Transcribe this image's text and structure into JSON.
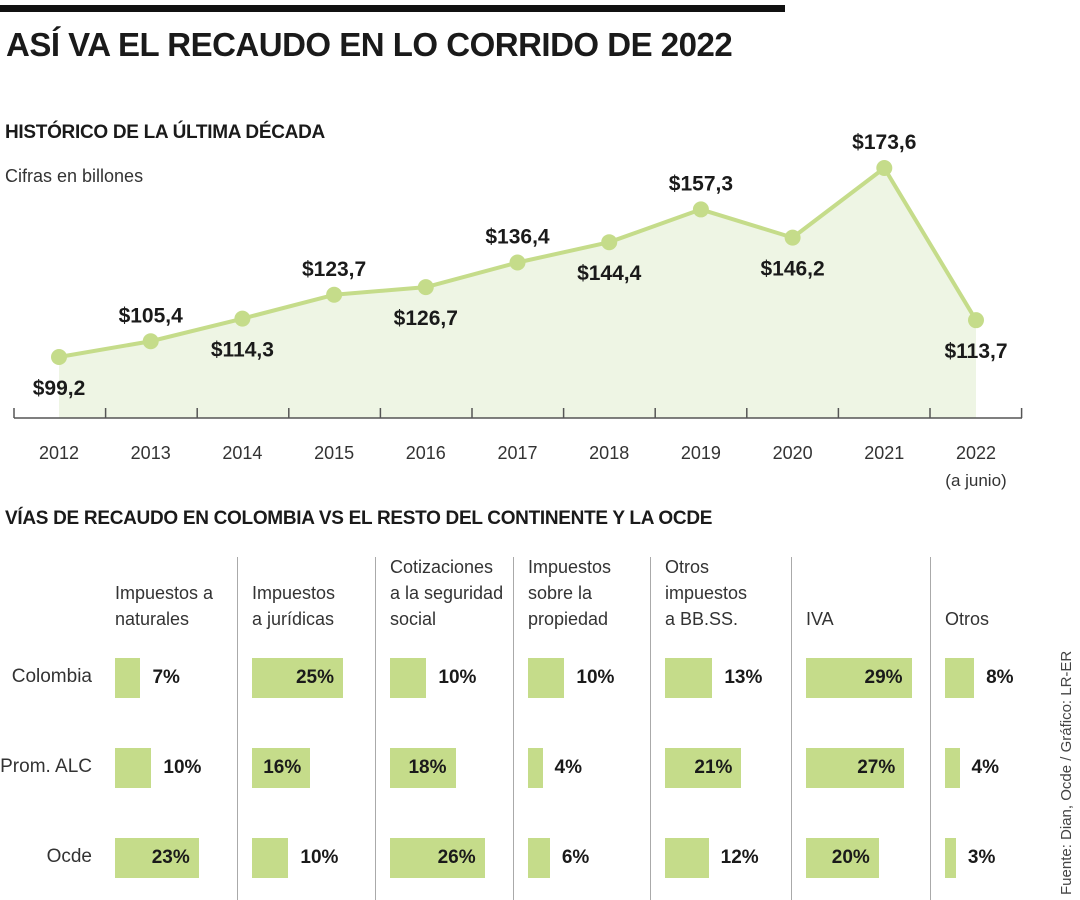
{
  "title": "ASÍ VA EL RECAUDO EN LO CORRIDO DE 2022",
  "section1": {
    "title": "HISTÓRICO DE LA ÚLTIMA DÉCADA",
    "note": "Cifras en billones"
  },
  "section2": {
    "title": "VÍAS DE RECAUDO EN COLOMBIA VS EL RESTO DEL CONTINENTE Y LA OCDE"
  },
  "source": "Fuente: Dian, Ocde / Gráfico: LR-ER",
  "colors": {
    "line": "#c5dc8a",
    "area": "#eef5e4",
    "bar": "#c5dc8a",
    "axis": "#555555"
  },
  "chart_data": [
    {
      "type": "area",
      "title": "HISTÓRICO DE LA ÚLTIMA DÉCADA",
      "ylabel": "Cifras en billones",
      "categories": [
        "2012",
        "2013",
        "2014",
        "2015",
        "2016",
        "2017",
        "2018",
        "2019",
        "2020",
        "2021",
        "2022"
      ],
      "category_notes": {
        "2022": "(a junio)"
      },
      "values": [
        99.2,
        105.4,
        114.3,
        123.7,
        126.7,
        136.4,
        144.4,
        157.3,
        146.2,
        173.6,
        113.7
      ],
      "data_labels": [
        "$99,2",
        "$105,4",
        "$114,3",
        "$123,7",
        "$126,7",
        "$136,4",
        "$144,4",
        "$157,3",
        "$146,2",
        "$173,6",
        "$113,7"
      ],
      "grid": false
    },
    {
      "type": "bar",
      "title": "VÍAS DE RECAUDO EN COLOMBIA VS EL RESTO DEL CONTINENTE Y LA OCDE",
      "categories": [
        "Impuestos a naturales",
        "Impuestos a jurídicas",
        "Cotizaciones a la seguridad social",
        "Impuestos sobre la propiedad",
        "Otros impuestos a BB.SS.",
        "IVA",
        "Otros"
      ],
      "category_lines": [
        [
          "Impuestos a",
          "naturales"
        ],
        [
          "Impuestos",
          "a jurídicas"
        ],
        [
          "Cotizaciones",
          "a la seguridad",
          "social"
        ],
        [
          "Impuestos",
          "sobre la",
          "propiedad"
        ],
        [
          "Otros",
          "impuestos",
          "a BB.SS."
        ],
        [
          "IVA"
        ],
        [
          "Otros"
        ]
      ],
      "series": [
        {
          "name": "Colombia",
          "values": [
            7,
            25,
            10,
            10,
            13,
            29,
            8
          ]
        },
        {
          "name": "Prom. ALC",
          "values": [
            10,
            16,
            18,
            4,
            21,
            27,
            4
          ]
        },
        {
          "name": "Ocde",
          "values": [
            23,
            10,
            26,
            6,
            12,
            20,
            3
          ]
        }
      ],
      "unit": "%"
    }
  ]
}
